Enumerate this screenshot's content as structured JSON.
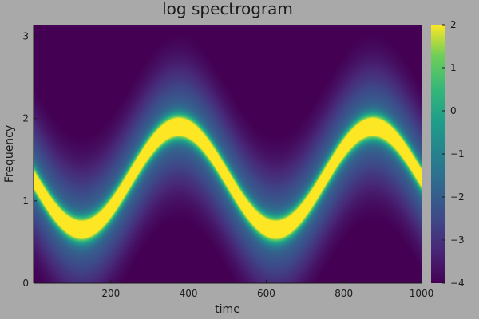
{
  "chart_data": {
    "type": "heatmap",
    "title": "log spectrogram",
    "xlabel": "time",
    "ylabel": "Frequency",
    "xlim": [
      1,
      1000
    ],
    "ylim": [
      0,
      3.14159
    ],
    "xticks": [
      200,
      400,
      600,
      800,
      1000
    ],
    "yticks": [
      0,
      1,
      2,
      3
    ],
    "colorbar": {
      "range": [
        -4,
        2
      ],
      "ticks": [
        -4,
        -3,
        -2,
        -1,
        0,
        1,
        2
      ],
      "tick_labels": [
        "−4",
        "−3",
        "−2",
        "−1",
        "0",
        "1",
        "2"
      ],
      "colormap": "viridis"
    },
    "ridge": {
      "description_values": "peak frequency along time",
      "time": [
        0,
        125,
        375,
        625,
        875,
        1000
      ],
      "frequency": [
        1.35,
        0.65,
        1.9,
        0.65,
        1.9,
        1.35
      ]
    },
    "value_range_observed": [
      -4,
      2
    ],
    "grid": false,
    "legend": "colorbar-right"
  }
}
